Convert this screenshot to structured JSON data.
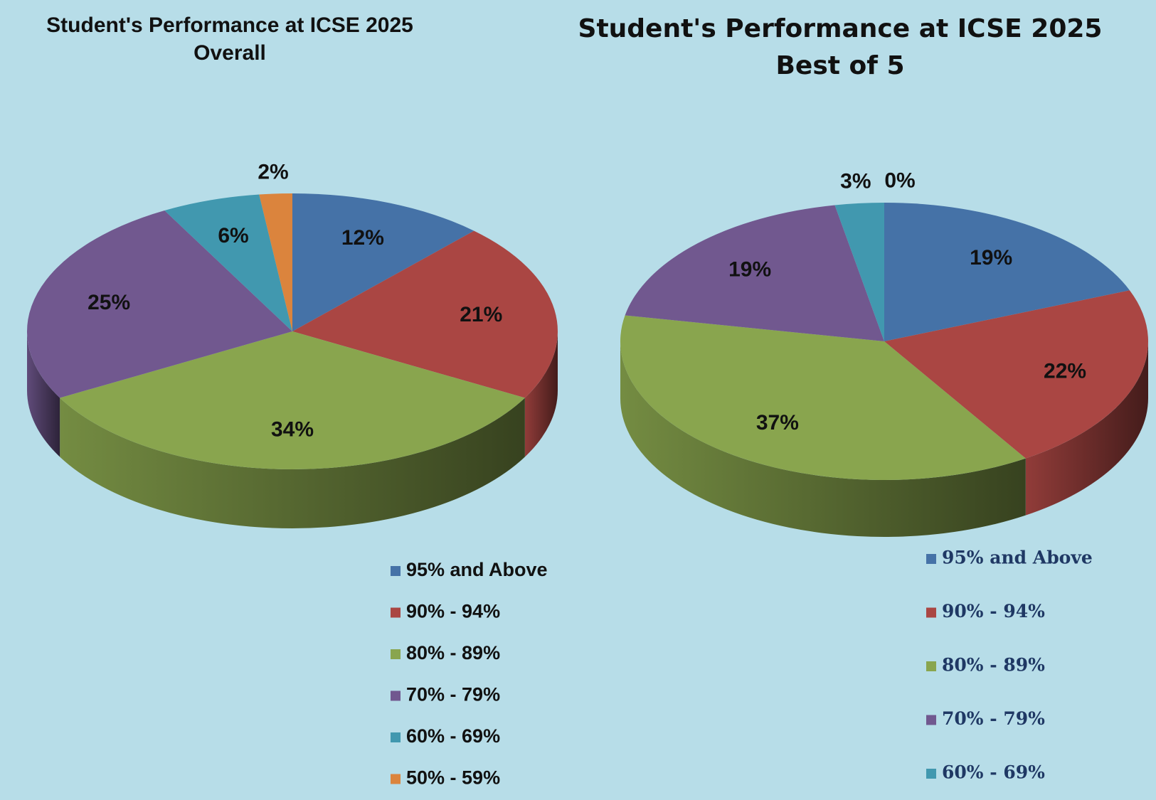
{
  "chart_data": [
    {
      "type": "pie",
      "title": "Student's Performance at ICSE 2025",
      "subtitle": "Overall",
      "categories": [
        "95% and Above",
        "90%  - 94%",
        "80% - 89%",
        "70% - 79%",
        "60% - 69%",
        "50% - 59%"
      ],
      "values": [
        12,
        21,
        34,
        25,
        6,
        2
      ],
      "value_labels": [
        "12%",
        "21%",
        "34%",
        "25%",
        "6%",
        "2%"
      ],
      "colors": [
        "#4572a7",
        "#aa4643",
        "#89a54e",
        "#71588f",
        "#4198af",
        "#db843d"
      ],
      "legend": "bottom-right"
    },
    {
      "type": "pie",
      "title": "Student's Performance at ICSE 2025",
      "subtitle": "Best of 5",
      "categories": [
        "95% and Above",
        "90%  - 94%",
        "80% - 89%",
        "70% - 79%",
        "60% - 69%",
        null
      ],
      "values": [
        19,
        22,
        37,
        19,
        3,
        0
      ],
      "value_labels": [
        "19%",
        "22%",
        "37%",
        "19%",
        "3%",
        "0%"
      ],
      "colors": [
        "#4572a7",
        "#aa4643",
        "#89a54e",
        "#71588f",
        "#4198af",
        "#db843d"
      ],
      "legend": "bottom-right"
    }
  ]
}
